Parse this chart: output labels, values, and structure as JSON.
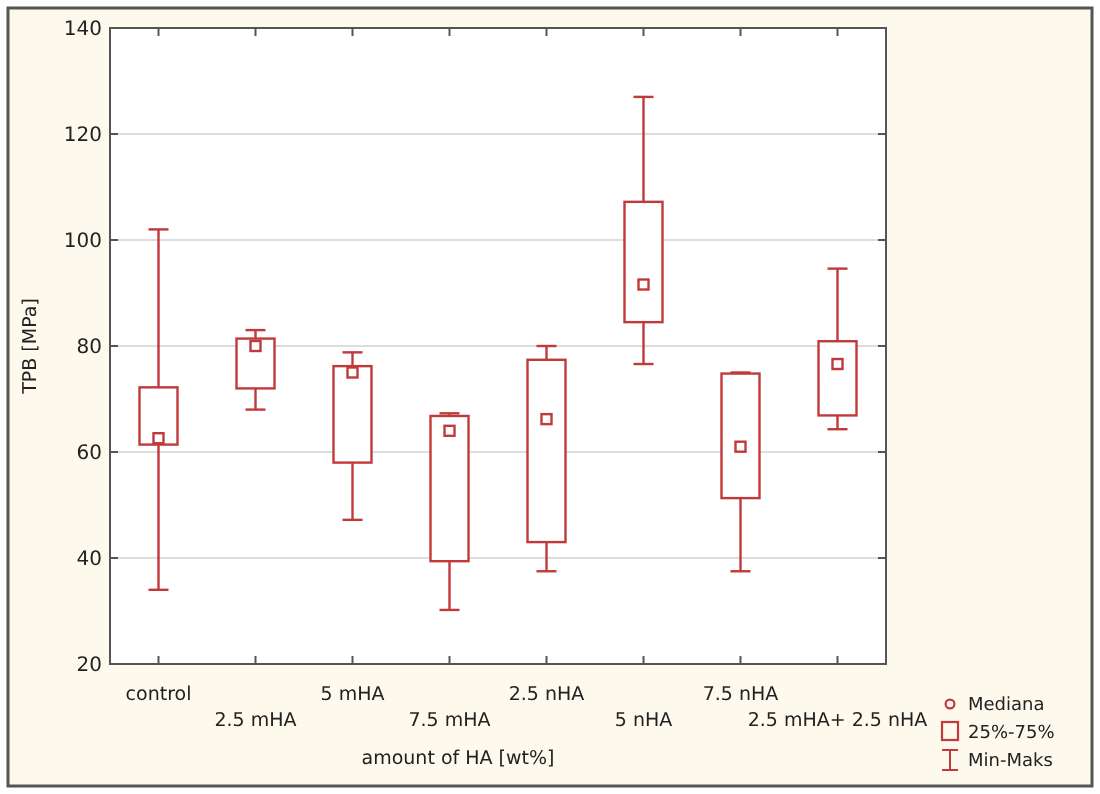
{
  "chart_data": {
    "type": "box",
    "xlabel": "amount of HA [wt%]",
    "ylabel": "TPB [MPa]",
    "categories": [
      "control",
      "2.5 mHA",
      "5 mHA",
      "7.5 mHA",
      "2.5 nHA",
      "5 nHA",
      "7.5 nHA",
      "2.5 mHA+ 2.5 nHA"
    ],
    "color": "#c0393b",
    "marker": "square",
    "grid": "y",
    "ylim": [
      20,
      140
    ],
    "yticks": [
      20,
      40,
      60,
      80,
      100,
      120,
      140
    ],
    "boxes": [
      {
        "low": 34,
        "q1": 61.4,
        "median": 62.6,
        "q3": 72.2,
        "high": 102
      },
      {
        "low": 68,
        "q1": 72,
        "median": 80,
        "q3": 81.4,
        "high": 83
      },
      {
        "low": 47.2,
        "q1": 58,
        "median": 75,
        "q3": 76.2,
        "high": 78.8
      },
      {
        "low": 30.2,
        "q1": 39.4,
        "median": 64,
        "q3": 66.8,
        "high": 67.3
      },
      {
        "low": 37.5,
        "q1": 43,
        "median": 66.2,
        "q3": 77.4,
        "high": 80
      },
      {
        "low": 76.6,
        "q1": 84.5,
        "median": 91.6,
        "q3": 107.2,
        "high": 127
      },
      {
        "low": 37.5,
        "q1": 51.3,
        "median": 61,
        "q3": 74.8,
        "high": 75
      },
      {
        "low": 64.3,
        "q1": 66.9,
        "median": 76.6,
        "q3": 80.9,
        "high": 94.6
      }
    ],
    "annotations": [
      "Mediana",
      "25%-75%",
      "Min-Maks"
    ]
  }
}
